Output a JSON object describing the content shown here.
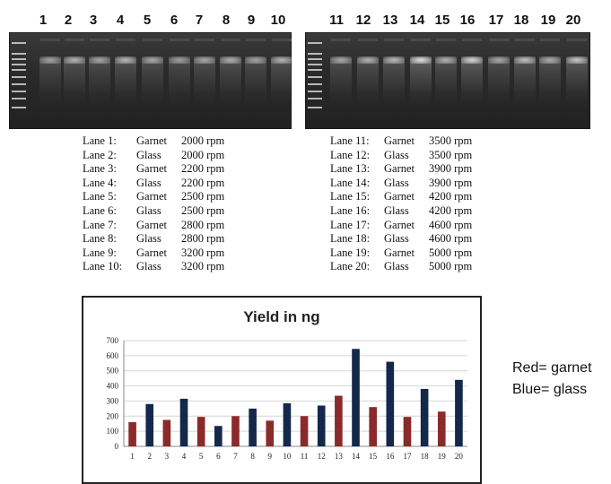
{
  "lane_numbers_left": [
    "1",
    "2",
    "3",
    "4",
    "5",
    "6",
    "7",
    "8",
    "9",
    "10"
  ],
  "lane_numbers_right": [
    "11",
    "12",
    "13",
    "14",
    "15",
    "16",
    "17",
    "18",
    "19",
    "20"
  ],
  "legend_left": [
    {
      "lane": "Lane 1:",
      "material": "Garnet",
      "speed": "2000 rpm"
    },
    {
      "lane": "Lane 2:",
      "material": "Glass",
      "speed": "2000 rpm"
    },
    {
      "lane": "Lane 3:",
      "material": "Garnet",
      "speed": "2200 rpm"
    },
    {
      "lane": "Lane 4:",
      "material": "Glass",
      "speed": "2200 rpm"
    },
    {
      "lane": "Lane 5:",
      "material": "Garnet",
      "speed": "2500 rpm"
    },
    {
      "lane": "Lane 6:",
      "material": "Glass",
      "speed": "2500 rpm"
    },
    {
      "lane": "Lane 7:",
      "material": "Garnet",
      "speed": "2800 rpm"
    },
    {
      "lane": "Lane 8:",
      "material": "Glass",
      "speed": "2800 rpm"
    },
    {
      "lane": "Lane 9:",
      "material": "Garnet",
      "speed": "3200 rpm"
    },
    {
      "lane": "Lane 10:",
      "material": "Glass",
      "speed": "3200 rpm"
    }
  ],
  "legend_right": [
    {
      "lane": "Lane 11:",
      "material": "Garnet",
      "speed": "3500 rpm"
    },
    {
      "lane": "Lane 12:",
      "material": "Glass",
      "speed": "3500 rpm"
    },
    {
      "lane": "Lane 13:",
      "material": "Garnet",
      "speed": "3900 rpm"
    },
    {
      "lane": "Lane 14:",
      "material": "Glass",
      "speed": "3900 rpm"
    },
    {
      "lane": "Lane 15:",
      "material": "Garnet",
      "speed": "4200 rpm"
    },
    {
      "lane": "Lane 16:",
      "material": "Glass",
      "speed": "4200 rpm"
    },
    {
      "lane": "Lane 17:",
      "material": "Garnet",
      "speed": "4600 rpm"
    },
    {
      "lane": "Lane 18:",
      "material": "Glass",
      "speed": "4600 rpm"
    },
    {
      "lane": "Lane 19:",
      "material": "Garnet",
      "speed": "5000 rpm"
    },
    {
      "lane": "Lane 20:",
      "material": "Glass",
      "speed": "5000 rpm"
    }
  ],
  "key": {
    "red": "Red= garnet",
    "blue": "Blue= glass"
  },
  "colors": {
    "garnet": "#8b2a2a",
    "glass": "#14284a"
  },
  "chart_data": {
    "type": "bar",
    "title": "Yield in ng",
    "xlabel": "",
    "ylabel": "",
    "categories": [
      "1",
      "2",
      "3",
      "4",
      "5",
      "6",
      "7",
      "8",
      "9",
      "10",
      "11",
      "12",
      "13",
      "14",
      "15",
      "16",
      "17",
      "18",
      "19",
      "20"
    ],
    "values": [
      160,
      280,
      175,
      315,
      195,
      135,
      200,
      250,
      170,
      285,
      200,
      270,
      335,
      645,
      260,
      560,
      195,
      380,
      230,
      440
    ],
    "bar_colors": [
      "garnet",
      "glass",
      "garnet",
      "glass",
      "garnet",
      "glass",
      "garnet",
      "glass",
      "garnet",
      "glass",
      "garnet",
      "glass",
      "garnet",
      "glass",
      "garnet",
      "glass",
      "garnet",
      "glass",
      "garnet",
      "glass"
    ],
    "yticks": [
      "0",
      "100",
      "200",
      "300",
      "400",
      "500",
      "600",
      "700"
    ],
    "ylim": [
      0,
      700
    ],
    "grid": true,
    "legend": "none"
  }
}
